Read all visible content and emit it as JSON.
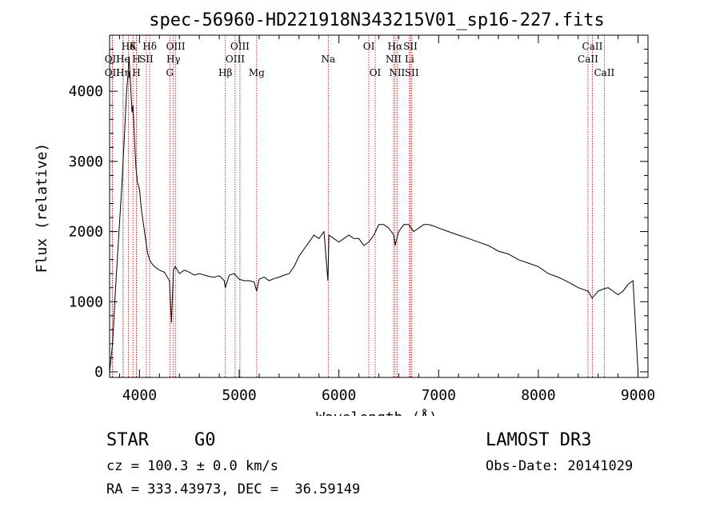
{
  "chart_data": {
    "type": "line",
    "title": "spec-56960-HD221918N343215V01_sp16-227.fits",
    "xlabel": "Wavelength (Å)",
    "ylabel": "Flux (relative)",
    "xlim": [
      3700,
      9100
    ],
    "ylim": [
      -80,
      4800
    ],
    "x_ticks": [
      4000,
      5000,
      6000,
      7000,
      8000,
      9000
    ],
    "y_ticks": [
      0,
      1000,
      2000,
      3000,
      4000
    ],
    "grid": false,
    "series": [
      {
        "x": [
          3700,
          3730,
          3760,
          3790,
          3820,
          3850,
          3870,
          3885,
          3895,
          3910,
          3925,
          3935,
          3950,
          3965,
          3980,
          4000,
          4020,
          4040,
          4060,
          4080,
          4100,
          4120,
          4150,
          4200,
          4250,
          4300,
          4320,
          4340,
          4360,
          4400,
          4450,
          4500,
          4550,
          4600,
          4650,
          4700,
          4750,
          4800,
          4850,
          4860,
          4900,
          4950,
          5000,
          5050,
          5100,
          5150,
          5175,
          5200,
          5250,
          5300,
          5350,
          5400,
          5450,
          5500,
          5550,
          5600,
          5650,
          5700,
          5750,
          5800,
          5850,
          5890,
          5900,
          5950,
          6000,
          6050,
          6100,
          6150,
          6200,
          6250,
          6300,
          6350,
          6400,
          6450,
          6500,
          6550,
          6563,
          6600,
          6650,
          6700,
          6750,
          6800,
          6850,
          6900,
          6950,
          7000,
          7100,
          7200,
          7300,
          7400,
          7500,
          7600,
          7700,
          7800,
          7900,
          8000,
          8100,
          8200,
          8300,
          8400,
          8500,
          8540,
          8600,
          8650,
          8700,
          8750,
          8800,
          8850,
          8900,
          8950,
          9000
        ],
        "y": [
          0,
          400,
          1200,
          1900,
          2600,
          3400,
          4000,
          4250,
          4500,
          4100,
          3700,
          3800,
          3300,
          2900,
          2700,
          2600,
          2300,
          2100,
          1900,
          1700,
          1600,
          1550,
          1500,
          1450,
          1420,
          1300,
          700,
          1450,
          1500,
          1400,
          1450,
          1420,
          1380,
          1400,
          1380,
          1360,
          1350,
          1370,
          1300,
          1200,
          1380,
          1400,
          1320,
          1300,
          1300,
          1280,
          1150,
          1320,
          1350,
          1300,
          1330,
          1350,
          1380,
          1400,
          1500,
          1650,
          1750,
          1850,
          1950,
          1900,
          2000,
          1300,
          1950,
          1900,
          1850,
          1900,
          1950,
          1900,
          1900,
          1800,
          1850,
          1950,
          2100,
          2100,
          2050,
          1950,
          1800,
          2000,
          2100,
          2100,
          2000,
          2050,
          2100,
          2100,
          2080,
          2050,
          2000,
          1950,
          1900,
          1850,
          1800,
          1720,
          1680,
          1600,
          1550,
          1500,
          1400,
          1350,
          1280,
          1200,
          1150,
          1050,
          1150,
          1180,
          1200,
          1150,
          1100,
          1150,
          1250,
          1300,
          0
        ]
      }
    ],
    "spectral_lines": [
      {
        "label": "Hδ",
        "wave": 3889,
        "row": 0
      },
      {
        "label": "K",
        "wave": 3934,
        "row": 0
      },
      {
        "label": "Hδ",
        "wave": 4102,
        "row": 0
      },
      {
        "label": "OIII",
        "wave": 4363,
        "row": 0
      },
      {
        "label": "OIII",
        "wave": 5007,
        "row": 0
      },
      {
        "label": "OI",
        "wave": 6300,
        "row": 0
      },
      {
        "label": "Hα",
        "wave": 6563,
        "row": 0
      },
      {
        "label": "SII",
        "wave": 6717,
        "row": 0
      },
      {
        "label": "CaII",
        "wave": 8542,
        "row": 0
      },
      {
        "label": "OII",
        "wave": 3727,
        "row": 1
      },
      {
        "label": "He",
        "wave": 3835,
        "row": 1
      },
      {
        "label": "H",
        "wave": 3970,
        "row": 1
      },
      {
        "label": "SII",
        "wave": 4068,
        "row": 1
      },
      {
        "label": "Hγ",
        "wave": 4340,
        "row": 1
      },
      {
        "label": "OIII",
        "wave": 4959,
        "row": 1
      },
      {
        "label": "Na",
        "wave": 5893,
        "row": 1
      },
      {
        "label": "NII",
        "wave": 6548,
        "row": 1
      },
      {
        "label": "Li",
        "wave": 6708,
        "row": 1
      },
      {
        "label": "CaII",
        "wave": 8498,
        "row": 1
      },
      {
        "label": "OII",
        "wave": 3727,
        "row": 2
      },
      {
        "label": "Hη",
        "wave": 3835,
        "row": 2
      },
      {
        "label": "H",
        "wave": 3970,
        "row": 2
      },
      {
        "label": "G",
        "wave": 4304,
        "row": 2
      },
      {
        "label": "Hβ",
        "wave": 4861,
        "row": 2
      },
      {
        "label": "Mg",
        "wave": 5175,
        "row": 2
      },
      {
        "label": "OI",
        "wave": 6364,
        "row": 2
      },
      {
        "label": "NII",
        "wave": 6583,
        "row": 2
      },
      {
        "label": "SII",
        "wave": 6731,
        "row": 2
      },
      {
        "label": "CaII",
        "wave": 8662,
        "row": 2
      }
    ]
  },
  "info": {
    "object_class": "STAR",
    "subclass": "G0",
    "survey": "LAMOST DR3",
    "redshift": "cz = 100.3 ± 0.0 km/s",
    "obs_date": "Obs-Date: 20141029",
    "coords": "RA = 333.43973, DEC =  36.59149"
  },
  "colors": {
    "spectrum": "#000000",
    "line_marker": "#cc0000",
    "axes": "#000000"
  }
}
